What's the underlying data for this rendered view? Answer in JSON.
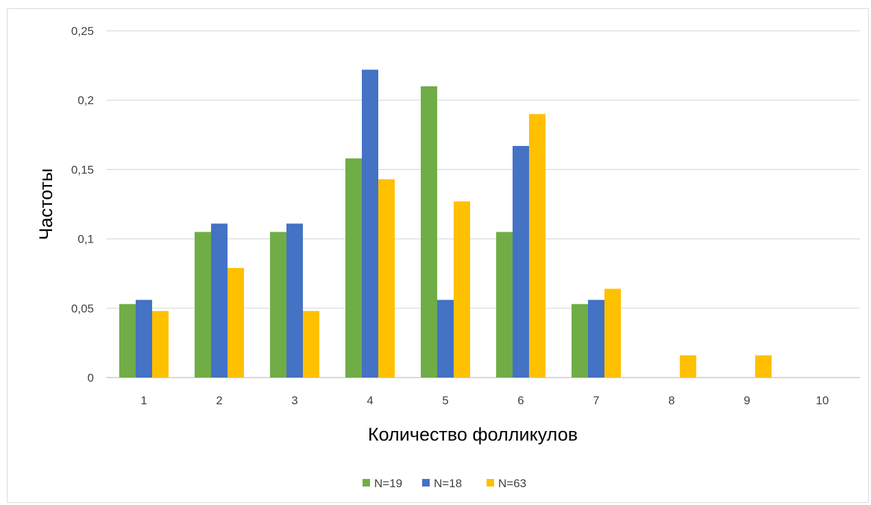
{
  "chart_data": {
    "type": "bar",
    "xlabel": "Количество фолликулов",
    "ylabel": "Частоты",
    "categories": [
      "1",
      "2",
      "3",
      "4",
      "5",
      "6",
      "7",
      "8",
      "9",
      "10"
    ],
    "ylim": [
      0,
      0.25
    ],
    "yticks": [
      0,
      0.05,
      0.1,
      0.15,
      0.2,
      0.25
    ],
    "ytick_labels": [
      "0",
      "0,05",
      "0,1",
      "0,15",
      "0,2",
      "0,25"
    ],
    "grid": true,
    "legend_position": "bottom",
    "series": [
      {
        "name": "N=19",
        "color": "#70ad47",
        "values": [
          0.053,
          0.105,
          0.105,
          0.158,
          0.21,
          0.105,
          0.053,
          0,
          0,
          0
        ]
      },
      {
        "name": "N=18",
        "color": "#4472c4",
        "values": [
          0.056,
          0.111,
          0.111,
          0.222,
          0.056,
          0.167,
          0.056,
          0,
          0,
          0
        ]
      },
      {
        "name": "N=63",
        "color": "#ffc000",
        "values": [
          0.048,
          0.079,
          0.048,
          0.143,
          0.127,
          0.19,
          0.064,
          0.016,
          0.016,
          0
        ]
      }
    ]
  }
}
